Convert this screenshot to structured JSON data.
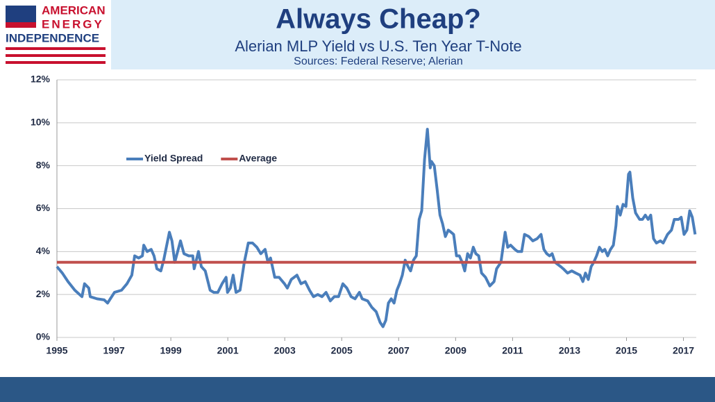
{
  "logo": {
    "lines": [
      "AMERICAN",
      "ENERGY",
      "INDEPENDENCE"
    ]
  },
  "chart_data": {
    "type": "line",
    "title": "Always Cheap?",
    "subtitle": "Alerian MLP Yield vs U.S. Ten Year T-Note",
    "source": "Sources: Federal Reserve; Alerian",
    "x": [
      1995.0,
      1995.19,
      1995.39,
      1995.63,
      1995.88,
      1995.97,
      1996.12,
      1996.17,
      1996.41,
      1996.66,
      1996.78,
      1997.02,
      1997.27,
      1997.46,
      1997.63,
      1997.73,
      1997.87,
      1998.0,
      1998.05,
      1998.17,
      1998.31,
      1998.41,
      1998.51,
      1998.65,
      1998.75,
      1998.95,
      1999.04,
      1999.14,
      1999.34,
      1999.46,
      1999.63,
      1999.77,
      1999.82,
      1999.97,
      2000.07,
      2000.21,
      2000.38,
      2000.51,
      2000.65,
      2000.8,
      2000.94,
      2000.99,
      2001.09,
      2001.19,
      2001.29,
      2001.43,
      2001.58,
      2001.72,
      2001.87,
      2002.02,
      2002.16,
      2002.31,
      2002.41,
      2002.5,
      2002.65,
      2002.8,
      2002.99,
      2003.09,
      2003.23,
      2003.43,
      2003.57,
      2003.72,
      2003.87,
      2004.01,
      2004.16,
      2004.31,
      2004.45,
      2004.6,
      2004.74,
      2004.89,
      2005.04,
      2005.18,
      2005.33,
      2005.47,
      2005.62,
      2005.72,
      2005.91,
      2006.06,
      2006.21,
      2006.35,
      2006.45,
      2006.55,
      2006.64,
      2006.74,
      2006.84,
      2006.94,
      2007.03,
      2007.13,
      2007.23,
      2007.33,
      2007.42,
      2007.52,
      2007.62,
      2007.72,
      2007.81,
      2007.91,
      2008.01,
      2008.11,
      2008.15,
      2008.25,
      2008.35,
      2008.45,
      2008.54,
      2008.64,
      2008.74,
      2008.84,
      2008.93,
      2009.03,
      2009.13,
      2009.23,
      2009.32,
      2009.42,
      2009.52,
      2009.62,
      2009.71,
      2009.81,
      2009.91,
      2010.05,
      2010.2,
      2010.35,
      2010.44,
      2010.59,
      2010.74,
      2010.83,
      2010.93,
      2011.08,
      2011.18,
      2011.32,
      2011.42,
      2011.57,
      2011.71,
      2011.86,
      2012.0,
      2012.1,
      2012.2,
      2012.3,
      2012.39,
      2012.49,
      2012.59,
      2012.69,
      2012.78,
      2012.93,
      2013.08,
      2013.22,
      2013.37,
      2013.47,
      2013.56,
      2013.66,
      2013.76,
      2013.85,
      2013.95,
      2014.05,
      2014.15,
      2014.24,
      2014.34,
      2014.44,
      2014.54,
      2014.63,
      2014.68,
      2014.78,
      2014.88,
      2014.98,
      2015.07,
      2015.12,
      2015.22,
      2015.32,
      2015.46,
      2015.56,
      2015.66,
      2015.76,
      2015.85,
      2015.95,
      2016.05,
      2016.19,
      2016.29,
      2016.44,
      2016.58,
      2016.68,
      2016.83,
      2016.92,
      2017.02,
      2017.12,
      2017.22,
      2017.31,
      2017.41
    ],
    "series": [
      {
        "name": "Yield Spread",
        "color": "#4a7ebb",
        "values": [
          3.3,
          3.0,
          2.6,
          2.2,
          1.9,
          2.5,
          2.3,
          1.9,
          1.8,
          1.75,
          1.6,
          2.1,
          2.2,
          2.5,
          2.9,
          3.8,
          3.7,
          3.8,
          4.3,
          4.0,
          4.1,
          3.8,
          3.2,
          3.1,
          3.6,
          4.9,
          4.5,
          3.5,
          4.5,
          3.9,
          3.8,
          3.8,
          3.2,
          4.0,
          3.3,
          3.1,
          2.2,
          2.1,
          2.1,
          2.5,
          2.8,
          2.1,
          2.3,
          2.9,
          2.1,
          2.2,
          3.5,
          4.4,
          4.4,
          4.2,
          3.9,
          4.1,
          3.5,
          3.7,
          2.8,
          2.8,
          2.5,
          2.3,
          2.7,
          2.9,
          2.5,
          2.6,
          2.2,
          1.9,
          2.0,
          1.9,
          2.1,
          1.7,
          1.9,
          1.9,
          2.5,
          2.3,
          1.9,
          1.8,
          2.1,
          1.8,
          1.7,
          1.4,
          1.2,
          0.7,
          0.5,
          0.8,
          1.6,
          1.8,
          1.6,
          2.2,
          2.5,
          2.9,
          3.6,
          3.3,
          3.1,
          3.6,
          3.8,
          5.5,
          5.9,
          8.3,
          9.7,
          7.9,
          8.2,
          8.0,
          6.9,
          5.7,
          5.3,
          4.7,
          5.0,
          4.9,
          4.8,
          3.8,
          3.8,
          3.5,
          3.1,
          3.9,
          3.7,
          4.2,
          3.9,
          3.8,
          3.0,
          2.8,
          2.4,
          2.6,
          3.2,
          3.5,
          4.9,
          4.2,
          4.3,
          4.1,
          4.0,
          4.0,
          4.8,
          4.7,
          4.5,
          4.6,
          4.8,
          4.1,
          3.9,
          3.8,
          3.9,
          3.5,
          3.4,
          3.3,
          3.2,
          3.0,
          3.1,
          3.0,
          2.9,
          2.6,
          3.0,
          2.7,
          3.3,
          3.5,
          3.8,
          4.2,
          4.0,
          4.1,
          3.8,
          4.1,
          4.3,
          5.2,
          6.1,
          5.7,
          6.2,
          6.1,
          7.6,
          7.7,
          6.5,
          5.8,
          5.5,
          5.5,
          5.7,
          5.5,
          5.7,
          4.6,
          4.4,
          4.5,
          4.4,
          4.8,
          5.0,
          5.5,
          5.5,
          5.6,
          4.8,
          5.0,
          5.9,
          5.6,
          4.8
        ]
      }
    ],
    "reference_lines": [
      {
        "name": "Average",
        "color": "#c0504d",
        "value": 3.5
      }
    ],
    "xlim": [
      1995,
      2017.45
    ],
    "xticks": [
      1995,
      1997,
      1999,
      2001,
      2003,
      2005,
      2007,
      2009,
      2011,
      2013,
      2015,
      2017
    ],
    "ylim": [
      0,
      12
    ],
    "yticks": [
      {
        "value": 0,
        "label": "0%"
      },
      {
        "value": 2,
        "label": "2%"
      },
      {
        "value": 4,
        "label": "4%"
      },
      {
        "value": 6,
        "label": "6%"
      },
      {
        "value": 8,
        "label": "8%"
      },
      {
        "value": 10,
        "label": "10%"
      },
      {
        "value": 12,
        "label": "12%"
      }
    ],
    "grid": true,
    "legend_position": "upper left"
  }
}
